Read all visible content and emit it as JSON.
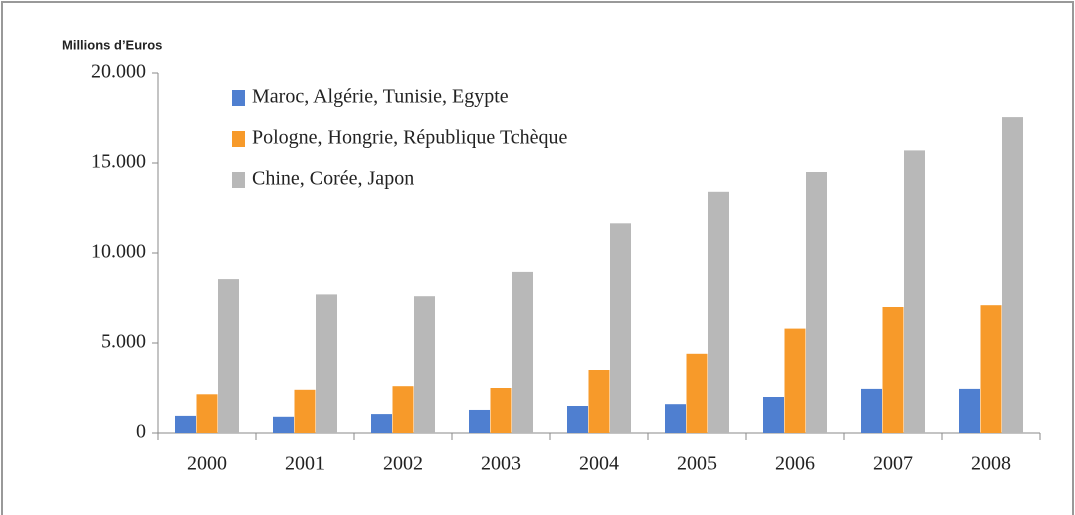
{
  "chart_data": {
    "type": "bar",
    "y_axis_label": "Millions d’Euros",
    "categories": [
      "2000",
      "2001",
      "2002",
      "2003",
      "2004",
      "2005",
      "2006",
      "2007",
      "2008"
    ],
    "series": [
      {
        "name": "Maroc, Algérie, Tunisie, Egypte",
        "color": "#4f7fd0",
        "values": [
          950,
          900,
          1050,
          1280,
          1500,
          1600,
          2000,
          2450,
          2450
        ]
      },
      {
        "name": "Pologne, Hongrie, République Tchèque",
        "color": "#f79a2a",
        "values": [
          2150,
          2400,
          2600,
          2500,
          3500,
          4400,
          5800,
          7000,
          7100
        ]
      },
      {
        "name": "Chine, Corée, Japon",
        "color": "#b8b8b8",
        "values": [
          8550,
          7700,
          7600,
          8950,
          11650,
          13400,
          14500,
          15700,
          17550
        ]
      }
    ],
    "ylim": [
      0,
      20000
    ],
    "yticks": [
      0,
      {
        "value": 5000,
        "label": "5.000"
      },
      {
        "value": 10000,
        "label": "10.000"
      },
      {
        "value": 15000,
        "label": "15.000"
      },
      {
        "value": 20000,
        "label": "20.000"
      }
    ],
    "legend": "upper left"
  }
}
